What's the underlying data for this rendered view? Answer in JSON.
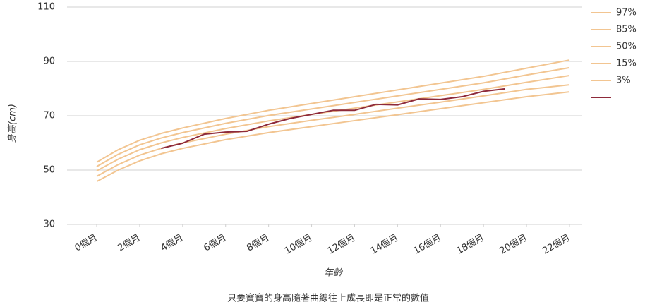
{
  "chart_data": {
    "type": "line",
    "y_label": "身高(cm)",
    "x_label": "年齡",
    "caption": "只要寶寶的身高隨著曲線往上成長即是正常的數值",
    "xlim": [
      0,
      22
    ],
    "xticks": [
      {
        "value": 0,
        "label": "0個月"
      },
      {
        "value": 2,
        "label": "2個月"
      },
      {
        "value": 4,
        "label": "4個月"
      },
      {
        "value": 6,
        "label": "6個月"
      },
      {
        "value": 8,
        "label": "8個月"
      },
      {
        "value": 10,
        "label": "10個月"
      },
      {
        "value": 12,
        "label": "12個月"
      },
      {
        "value": 14,
        "label": "14個月"
      },
      {
        "value": 16,
        "label": "16個月"
      },
      {
        "value": 18,
        "label": "18個月"
      },
      {
        "value": 20,
        "label": "20個月"
      },
      {
        "value": 22,
        "label": "22個月"
      }
    ],
    "ylim": [
      30,
      110
    ],
    "yticks": [
      30,
      50,
      70,
      90,
      110
    ],
    "grid": true,
    "legend": "right",
    "series": [
      {
        "name": "97%",
        "color": "#f2c591",
        "x": [
          0,
          1,
          2,
          3,
          4,
          6,
          8,
          10,
          12,
          14,
          16,
          18,
          20,
          22
        ],
        "values": [
          52.9,
          57.5,
          61,
          63.5,
          65.5,
          69,
          72,
          74.5,
          77,
          79.5,
          82,
          84.5,
          87.5,
          90.5
        ]
      },
      {
        "name": "85%",
        "color": "#f2c591",
        "x": [
          0,
          1,
          2,
          3,
          4,
          6,
          8,
          10,
          12,
          14,
          16,
          18,
          20,
          22
        ],
        "values": [
          51.3,
          55.8,
          59.3,
          61.8,
          63.8,
          67.2,
          70.1,
          72.5,
          74.9,
          77.3,
          79.7,
          82.1,
          85,
          87.7
        ]
      },
      {
        "name": "50%",
        "color": "#f2c591",
        "x": [
          0,
          1,
          2,
          3,
          4,
          6,
          8,
          10,
          12,
          14,
          16,
          18,
          20,
          22
        ],
        "values": [
          49.7,
          54,
          57.5,
          60,
          62,
          65.3,
          68.1,
          70.5,
          72.8,
          75.1,
          77.4,
          79.7,
          82.3,
          84.8
        ]
      },
      {
        "name": "15%",
        "color": "#f2c591",
        "x": [
          0,
          1,
          2,
          3,
          4,
          6,
          8,
          10,
          12,
          14,
          16,
          18,
          20,
          22
        ],
        "values": [
          47.7,
          52,
          55.5,
          58,
          60,
          63.2,
          66,
          68.3,
          70.5,
          72.8,
          75,
          77.3,
          79.7,
          81.4
        ]
      },
      {
        "name": "3%",
        "color": "#f2c591",
        "x": [
          0,
          1,
          2,
          3,
          4,
          6,
          8,
          10,
          12,
          14,
          16,
          18,
          20,
          22
        ],
        "values": [
          45.8,
          50,
          53.4,
          56,
          58,
          61.2,
          63.8,
          66,
          68.2,
          70.4,
          72.6,
          74.8,
          77,
          78.8
        ]
      },
      {
        "color": "#8e2a3a",
        "x": [
          3,
          4,
          5,
          6,
          7,
          8,
          9,
          10,
          11,
          12,
          13,
          14,
          15,
          16,
          17,
          18,
          19
        ],
        "values": [
          58,
          59.9,
          63.2,
          64,
          64.3,
          66.9,
          69,
          70.5,
          72,
          72,
          74.2,
          74,
          76.2,
          76,
          77,
          79,
          79.9
        ]
      }
    ]
  }
}
